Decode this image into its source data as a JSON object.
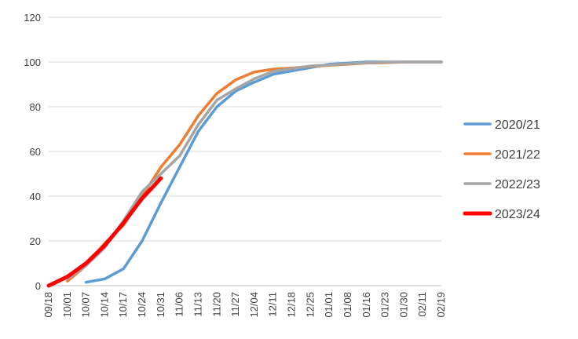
{
  "chart_data": {
    "type": "line",
    "title": "",
    "xlabel": "",
    "ylabel": "",
    "ylim": [
      0,
      120
    ],
    "yticks": [
      0,
      20,
      40,
      60,
      80,
      100,
      120
    ],
    "grid": "horizontal",
    "legend_position": "right",
    "categories": [
      "09/18",
      "10/01",
      "10/07",
      "10/14",
      "10/17",
      "10/24",
      "10/31",
      "11/06",
      "11/13",
      "11/20",
      "11/27",
      "12/04",
      "12/11",
      "12/18",
      "12/25",
      "01/01",
      "01/08",
      "01/16",
      "01/23",
      "01/30",
      "02/11",
      "02/19"
    ],
    "series": [
      {
        "name": "2020/21",
        "color": "#5B9BD5",
        "values": [
          null,
          null,
          1.5,
          3,
          7.5,
          20,
          37,
          53,
          69,
          80,
          87,
          91,
          94.5,
          96,
          97.5,
          99,
          99.5,
          100,
          100,
          100,
          100,
          100
        ]
      },
      {
        "name": "2021/22",
        "color": "#ED7D31",
        "values": [
          null,
          2,
          9,
          19,
          27,
          40,
          53,
          63,
          76,
          86,
          92,
          95.5,
          96.8,
          97.3,
          98,
          98.5,
          99,
          99.5,
          99.7,
          100,
          100,
          100
        ]
      },
      {
        "name": "2022/23",
        "color": "#A5A5A5",
        "values": [
          null,
          3,
          9,
          17,
          29,
          42,
          50,
          58,
          72,
          83,
          88,
          92.5,
          95.8,
          97,
          98.2,
          98.7,
          99.2,
          99.6,
          99.9,
          100,
          100,
          100
        ]
      },
      {
        "name": "2023/24",
        "color": "#FF0000",
        "values": [
          0,
          4,
          10,
          18,
          28,
          39,
          48,
          null,
          null,
          null,
          null,
          null,
          null,
          null,
          null,
          null,
          null,
          null,
          null,
          null,
          null,
          null
        ]
      }
    ]
  }
}
